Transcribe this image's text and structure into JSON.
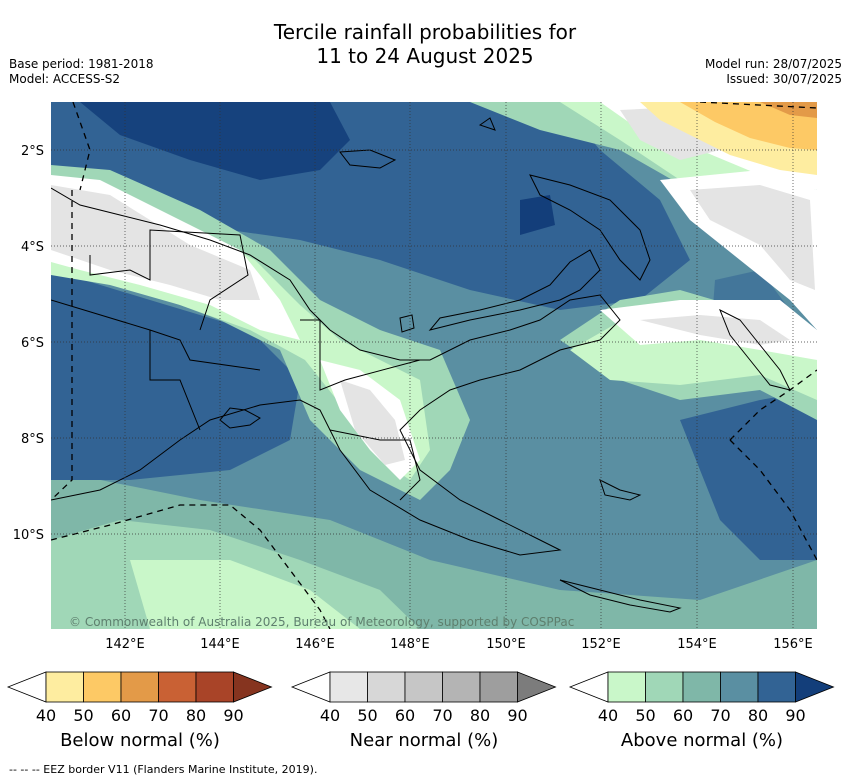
{
  "title": {
    "line1": "Tercile rainfall probabilities for",
    "line2": "11 to 24 August 2025"
  },
  "meta": {
    "base_period": "Base period: 1981-2018",
    "model": "Model: ACCESS-S2",
    "model_run": "Model run: 28/07/2025",
    "issued": "Issued: 30/07/2025"
  },
  "map": {
    "lat_labels": [
      "2°S",
      "4°S",
      "6°S",
      "8°S",
      "10°S"
    ],
    "lon_labels": [
      "142°E",
      "144°E",
      "146°E",
      "148°E",
      "150°E",
      "152°E",
      "154°E",
      "156°E"
    ],
    "copyright": "© Commonwealth of Australia 2025, Bureau of Meteorology, supported by COSPPac"
  },
  "colorbars": {
    "below": {
      "label": "Below normal (%)",
      "ticks": [
        "40",
        "50",
        "60",
        "70",
        "80",
        "90"
      ],
      "colors": [
        "#ffffff",
        "#feeda0",
        "#fdc965",
        "#e39a48",
        "#c96134",
        "#a94428",
        "#86341f"
      ]
    },
    "near": {
      "label": "Near normal (%)",
      "ticks": [
        "40",
        "50",
        "60",
        "70",
        "80",
        "90"
      ],
      "colors": [
        "#ffffff",
        "#e7e7e7",
        "#d7d7d7",
        "#c6c6c6",
        "#b4b4b4",
        "#9e9e9e",
        "#7c7c7c"
      ]
    },
    "above": {
      "label": "Above normal (%)",
      "ticks": [
        "40",
        "50",
        "60",
        "70",
        "80",
        "90"
      ],
      "colors": [
        "#ffffff",
        "#c9f7c9",
        "#a0d7b7",
        "#7fb7a8",
        "#5a8fa2",
        "#326394",
        "#133e7a"
      ]
    }
  },
  "footer": "--  --  -- EEZ border V11 (Flanders Marine Institute, 2019)."
}
